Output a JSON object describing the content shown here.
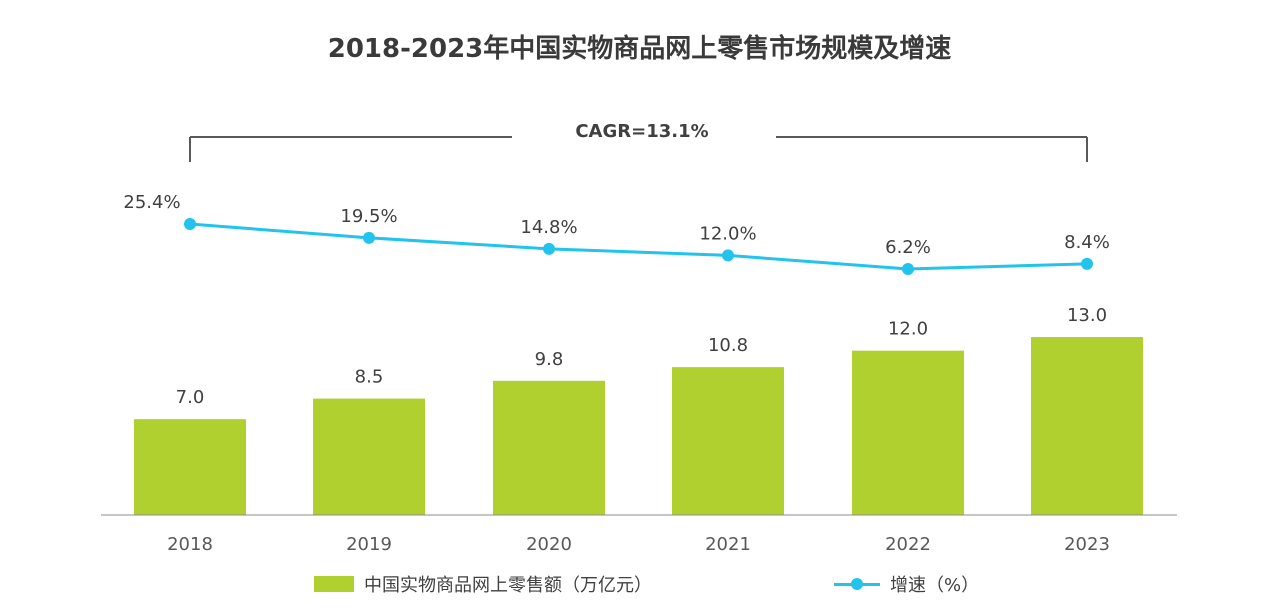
{
  "chart_data": {
    "type": "bar",
    "title": "2018-2023年中国实物商品网上零售市场规模及增速",
    "categories": [
      "2018",
      "2019",
      "2020",
      "2021",
      "2022",
      "2023"
    ],
    "series": [
      {
        "name": "中国实物商品网上零售额（万亿元）",
        "type": "bar",
        "values": [
          7.0,
          8.5,
          9.8,
          10.8,
          12.0,
          13.0
        ],
        "labels": [
          "7.0",
          "8.5",
          "9.8",
          "10.8",
          "12.0",
          "13.0"
        ],
        "color": "#b0d030"
      },
      {
        "name": "增速（%）",
        "type": "line",
        "values": [
          25.4,
          19.5,
          14.8,
          12.0,
          6.2,
          8.4
        ],
        "labels": [
          "25.4%",
          "19.5%",
          "14.8%",
          "12.0%",
          "6.2%",
          "8.4%"
        ],
        "color": "#22c3ec"
      }
    ],
    "annotation": "CAGR=13.1%",
    "ylim_bar": [
      0,
      13.0
    ],
    "legend_position": "bottom",
    "grid": false
  }
}
